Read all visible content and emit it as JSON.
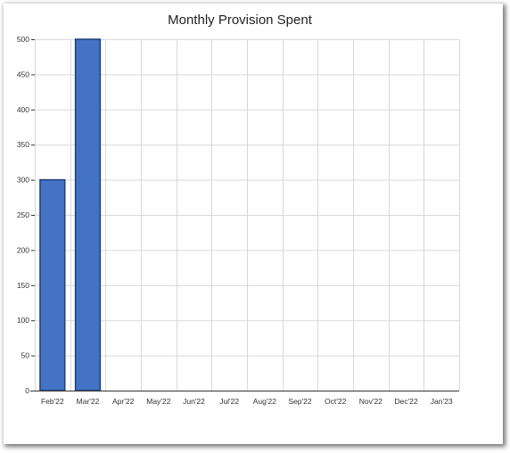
{
  "chart_data": {
    "type": "bar",
    "title": "Monthly Provision Spent",
    "xlabel": "",
    "ylabel": "",
    "categories": [
      "Feb'22",
      "Mar'22",
      "Apr'22",
      "May'22",
      "Jun'22",
      "Jul'22",
      "Aug'22",
      "Sep'22",
      "Oct'22",
      "Nov'22",
      "Dec'22",
      "Jan'23"
    ],
    "values": [
      300,
      500,
      0,
      0,
      0,
      0,
      0,
      0,
      0,
      0,
      0,
      0
    ],
    "ylim": [
      0,
      500
    ],
    "yticks": [
      0,
      50,
      100,
      150,
      200,
      250,
      300,
      350,
      400,
      450,
      500
    ],
    "grid": true,
    "colors": {
      "bar_fill": "#4472c4",
      "bar_stroke": "#1f3f7a",
      "grid": "#d9d9d9",
      "axis": "#333333"
    }
  }
}
